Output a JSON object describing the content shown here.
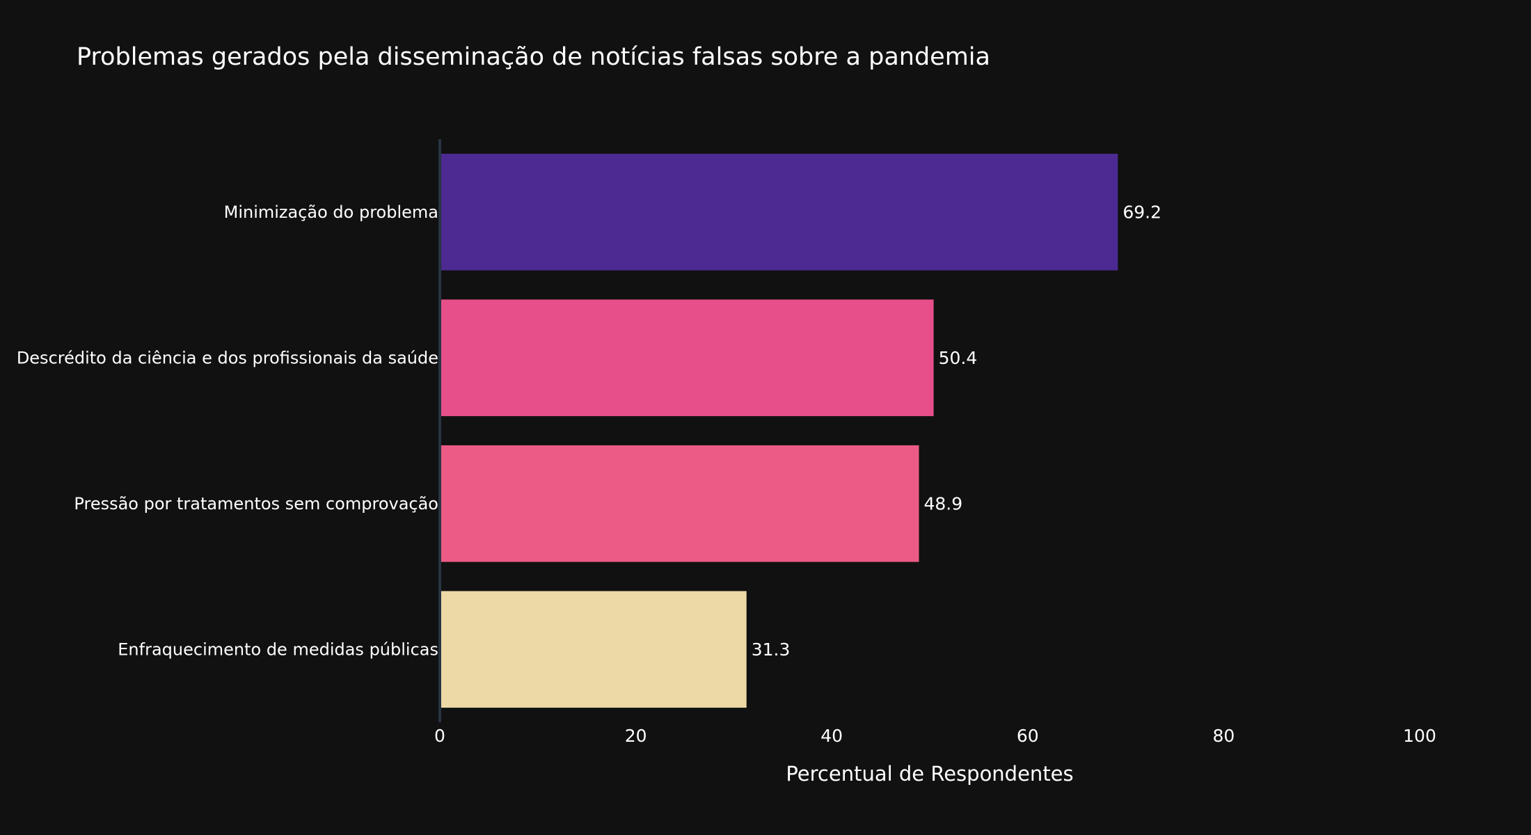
{
  "chart_data": {
    "type": "bar",
    "orientation": "horizontal",
    "title": "Problemas gerados pela disseminação de notícias falsas sobre a pandemia",
    "xlabel": "Percentual de Respondentes",
    "ylabel": "",
    "xlim": [
      0,
      100
    ],
    "xticks": [
      "0",
      "20",
      "40",
      "60",
      "80",
      "100"
    ],
    "categories": [
      "Minimização do problema",
      "Descrédito da ciência e dos profissionais da saúde",
      "Pressão por tratamentos sem comprovação",
      "Enfraquecimento de medidas públicas"
    ],
    "values": [
      69.2,
      50.4,
      48.9,
      31.3
    ],
    "data_labels": [
      "69.2",
      "50.4",
      "48.9",
      "31.3"
    ],
    "colors": [
      "#4c2a91",
      "#e64f8a",
      "#ec5b85",
      "#ecd9a6"
    ],
    "grid": false,
    "legend": "none",
    "background": "#111111",
    "axis_line_color": "#283442"
  }
}
